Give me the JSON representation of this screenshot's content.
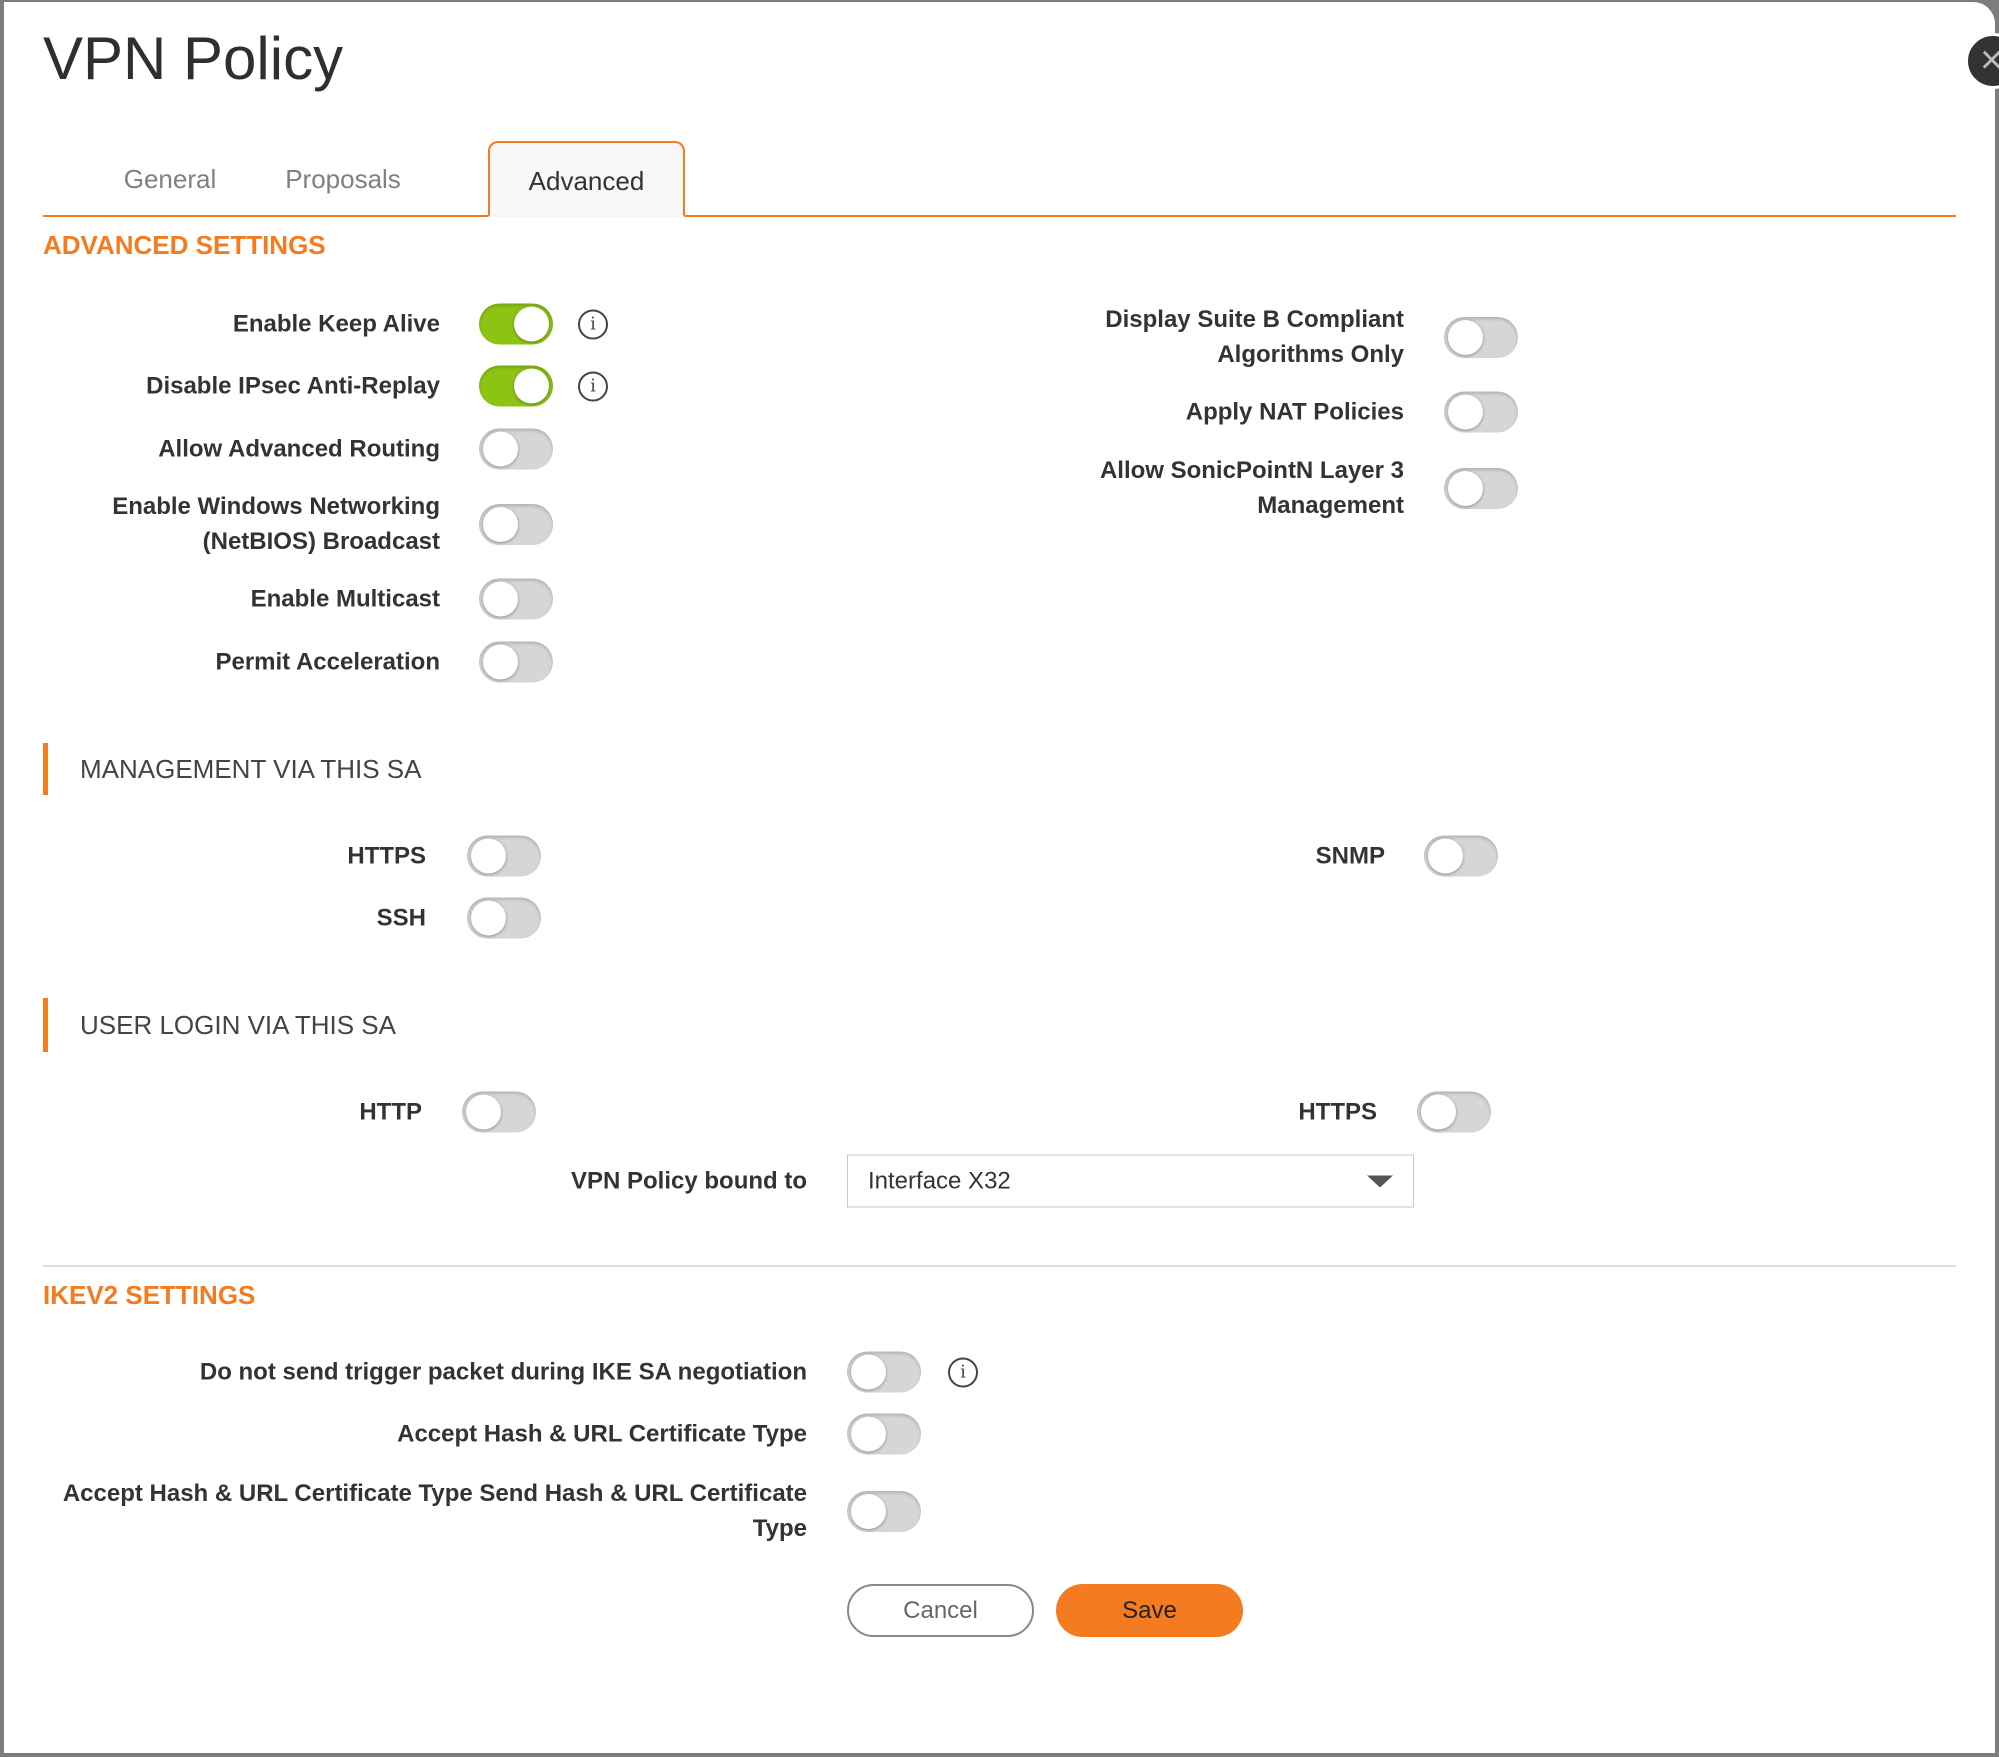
{
  "dialog": {
    "title": "VPN Policy",
    "close_icon": "close-icon"
  },
  "tabs": [
    {
      "label": "General",
      "active": false
    },
    {
      "label": "Proposals",
      "active": false
    },
    {
      "label": "Advanced",
      "active": true
    }
  ],
  "advanced": {
    "heading": "ADVANCED SETTINGS",
    "left": [
      {
        "label": "Enable Keep Alive",
        "on": true,
        "info": true
      },
      {
        "label": "Disable IPsec Anti-Replay",
        "on": true,
        "info": true
      },
      {
        "label": "Allow Advanced Routing",
        "on": false
      },
      {
        "label": "Enable Windows Networking (NetBIOS) Broadcast",
        "on": false
      },
      {
        "label": "Enable Multicast",
        "on": false
      },
      {
        "label": "Permit Acceleration",
        "on": false
      }
    ],
    "right": [
      {
        "label": "Display Suite B Compliant Algorithms Only",
        "on": false
      },
      {
        "label": "Apply NAT Policies",
        "on": false
      },
      {
        "label": "Allow SonicPointN Layer 3 Management",
        "on": false
      }
    ]
  },
  "management": {
    "heading": "MANAGEMENT VIA THIS SA",
    "https": {
      "label": "HTTPS",
      "on": false
    },
    "ssh": {
      "label": "SSH",
      "on": false
    },
    "snmp": {
      "label": "SNMP",
      "on": false
    }
  },
  "user_login": {
    "heading": "USER LOGIN VIA THIS SA",
    "http": {
      "label": "HTTP",
      "on": false
    },
    "https": {
      "label": "HTTPS",
      "on": false
    },
    "bound_to": {
      "label": "VPN Policy bound to",
      "value": "Interface X32"
    }
  },
  "ikev2": {
    "heading": "IKEV2 SETTINGS",
    "rows": [
      {
        "label": "Do not send trigger packet during IKE SA negotiation",
        "on": false,
        "info": true
      },
      {
        "label": "Accept Hash & URL Certificate Type",
        "on": false
      },
      {
        "label": "Accept Hash & URL Certificate Type Send Hash & URL Certificate Type",
        "on": false
      }
    ]
  },
  "footer": {
    "cancel": "Cancel",
    "save": "Save"
  },
  "colors": {
    "accent": "#f47b20",
    "toggle_on": "#8cc414",
    "toggle_off": "#d6d6d6"
  }
}
